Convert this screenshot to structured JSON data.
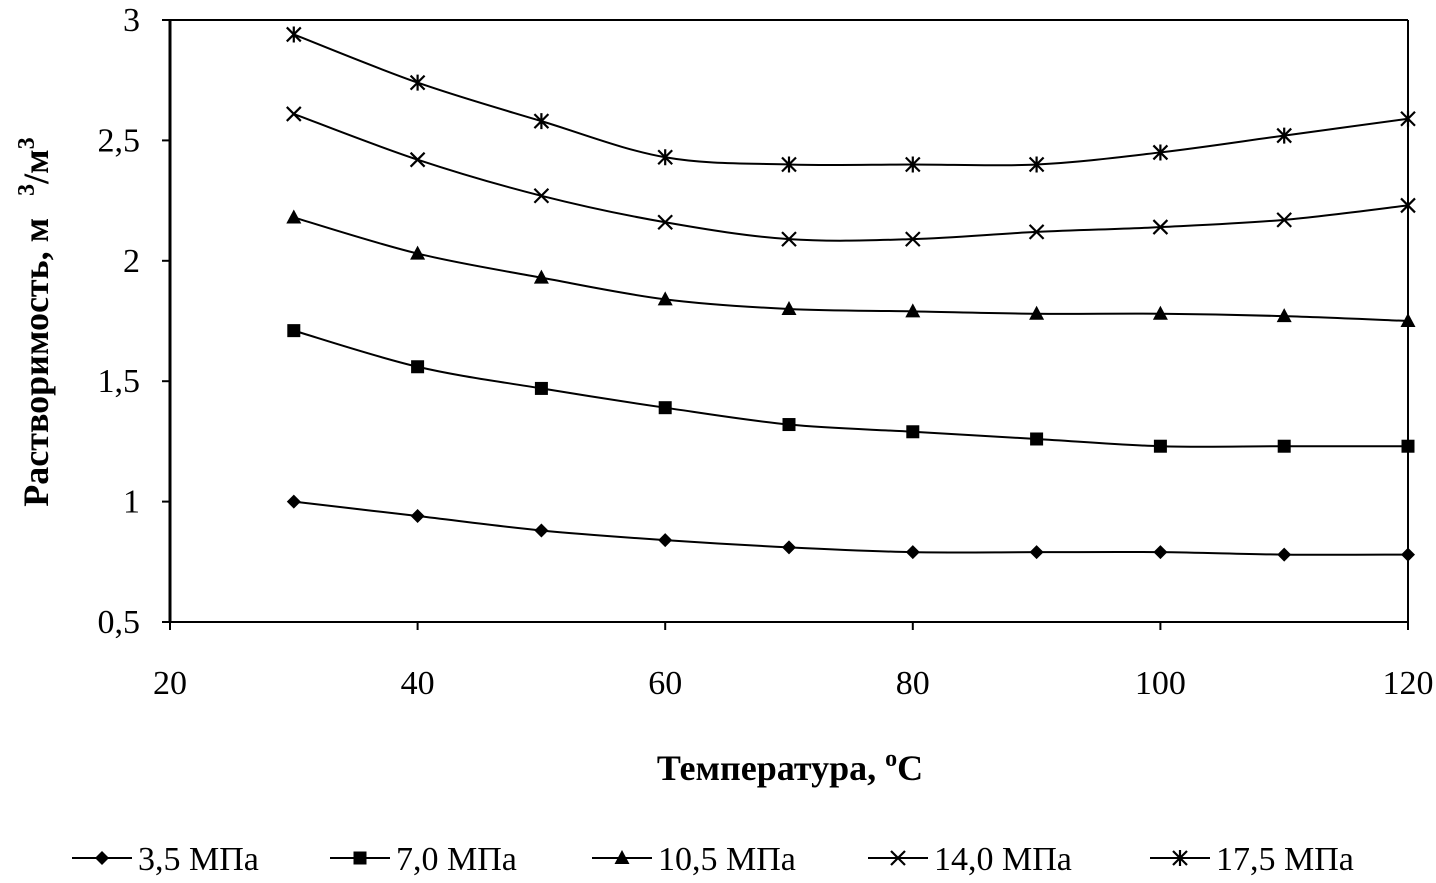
{
  "chart_data": {
    "type": "line",
    "title": "",
    "xlabel": "Температура, °С",
    "xlabel_main": "Температура, ",
    "xlabel_sup": "o",
    "xlabel_unit": "С",
    "ylabel": "Растворимость, м3/м3",
    "ylabel_main": "Растворимость, м",
    "ylabel_sup1": "3",
    "ylabel_mid": "/м",
    "ylabel_sup2": "3",
    "xlim": [
      20,
      120
    ],
    "ylim": [
      0.5,
      3
    ],
    "xticks": [
      20,
      40,
      60,
      80,
      100,
      120
    ],
    "xtick_labels": [
      "20",
      "40",
      "60",
      "80",
      "100",
      "120"
    ],
    "yticks": [
      0.5,
      1,
      1.5,
      2,
      2.5,
      3
    ],
    "ytick_labels": [
      "0,5",
      "1",
      "1,5",
      "2",
      "2,5",
      "3"
    ],
    "grid": false,
    "legend_position": "bottom",
    "x": [
      30,
      40,
      50,
      60,
      70,
      80,
      90,
      100,
      110,
      120
    ],
    "series": [
      {
        "name": "3,5 МПа",
        "marker": "diamond",
        "values": [
          1.0,
          0.94,
          0.88,
          0.84,
          0.81,
          0.79,
          0.79,
          0.79,
          0.78,
          0.78
        ]
      },
      {
        "name": "7,0 МПа",
        "marker": "square",
        "values": [
          1.71,
          1.56,
          1.47,
          1.39,
          1.32,
          1.29,
          1.26,
          1.23,
          1.23,
          1.23
        ]
      },
      {
        "name": "10,5 МПа",
        "marker": "triangle",
        "values": [
          2.18,
          2.03,
          1.93,
          1.84,
          1.8,
          1.79,
          1.78,
          1.78,
          1.77,
          1.75
        ]
      },
      {
        "name": "14,0 МПа",
        "marker": "x",
        "values": [
          2.61,
          2.42,
          2.27,
          2.16,
          2.09,
          2.09,
          2.12,
          2.14,
          2.17,
          2.23
        ]
      },
      {
        "name": "17,5 МПа",
        "marker": "star",
        "values": [
          2.94,
          2.74,
          2.58,
          2.43,
          2.4,
          2.4,
          2.4,
          2.45,
          2.52,
          2.59
        ]
      }
    ]
  }
}
